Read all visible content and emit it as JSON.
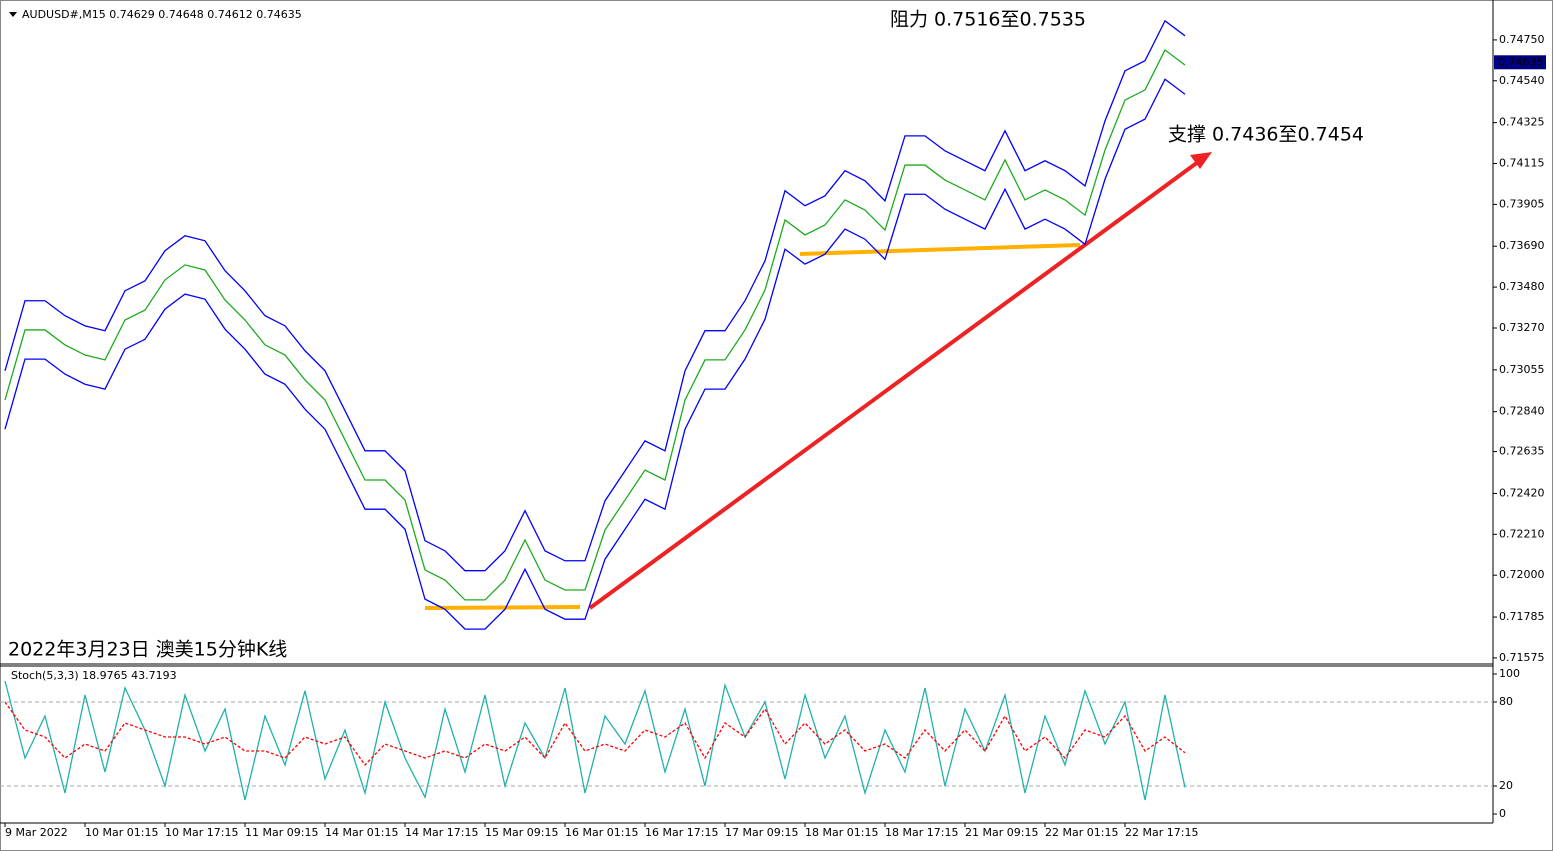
{
  "chart_data": [
    {
      "type": "line",
      "title": "AUDUSD#,M15  0.74629 0.74648 0.74612 0.74635",
      "annotations": [
        "阻力 0.7516至0.7535",
        "支撑 0.7436至0.7454",
        "2022年3月23日 澳美15分钟K线"
      ],
      "categories": [
        "9 Mar 2022",
        null,
        null,
        null,
        "10 Mar 01:15",
        null,
        null,
        null,
        "10 Mar 17:15",
        null,
        null,
        null,
        "11 Mar 09:15",
        null,
        null,
        null,
        "14 Mar 01:15",
        null,
        null,
        null,
        "14 Mar 17:15",
        null,
        null,
        null,
        "15 Mar 09:15",
        null,
        null,
        null,
        "16 Mar 01:15",
        null,
        null,
        null,
        "16 Mar 17:15",
        null,
        null,
        null,
        "17 Mar 09:15",
        null,
        null,
        null,
        "18 Mar 01:15",
        null,
        null,
        null,
        "18 Mar 17:15",
        null,
        null,
        null,
        "21 Mar 09:15",
        null,
        null,
        null,
        "22 Mar 01:15",
        null,
        null,
        null,
        "22 Mar 17:15",
        null,
        null,
        null
      ],
      "series": [
        {
          "color": "#0000ff",
          "values": [
            0.7305,
            0.7341,
            0.7341,
            0.73333,
            0.73281,
            0.73256,
            0.73461,
            0.73512,
            0.73667,
            0.73744,
            0.73718,
            0.73564,
            0.73461,
            0.73333,
            0.73281,
            0.73153,
            0.7305,
            0.72845,
            0.72639,
            0.72639,
            0.72536,
            0.72177,
            0.72125,
            0.72023,
            0.72023,
            0.72125,
            0.72331,
            0.72125,
            0.72074,
            0.72074,
            0.72382,
            0.72536,
            0.7269,
            0.72639,
            0.7305,
            0.73256,
            0.73256,
            0.7341,
            0.73615,
            0.73975,
            0.73898,
            0.73949,
            0.74078,
            0.74026,
            0.73923,
            0.74257,
            0.74257,
            0.7418,
            0.74129,
            0.74078,
            0.74283,
            0.74078,
            0.74129,
            0.74078,
            0.74,
            0.74334,
            0.74591,
            0.74643,
            0.74848,
            0.74771
          ]
        },
        {
          "color": "#1faa1f",
          "values": [
            0.729,
            0.7326,
            0.7326,
            0.73183,
            0.73131,
            0.73106,
            0.73311,
            0.73362,
            0.73517,
            0.73594,
            0.73568,
            0.73414,
            0.73311,
            0.73183,
            0.73131,
            0.73003,
            0.729,
            0.72695,
            0.72489,
            0.72489,
            0.72386,
            0.72027,
            0.71975,
            0.71873,
            0.71873,
            0.71975,
            0.72181,
            0.71975,
            0.71924,
            0.71924,
            0.72232,
            0.72386,
            0.7254,
            0.72489,
            0.729,
            0.73106,
            0.73106,
            0.7326,
            0.73465,
            0.73825,
            0.73748,
            0.73799,
            0.73928,
            0.73876,
            0.73773,
            0.74107,
            0.74107,
            0.7403,
            0.73979,
            0.73928,
            0.74133,
            0.73928,
            0.73979,
            0.73928,
            0.7385,
            0.74184,
            0.74441,
            0.74493,
            0.74698,
            0.74621
          ]
        },
        {
          "color": "#0000ff",
          "values": [
            0.7275,
            0.7311,
            0.7311,
            0.73033,
            0.72981,
            0.72956,
            0.73161,
            0.73212,
            0.73367,
            0.73444,
            0.73418,
            0.73264,
            0.73161,
            0.73033,
            0.72981,
            0.72853,
            0.7275,
            0.72545,
            0.72339,
            0.72339,
            0.72236,
            0.71877,
            0.71825,
            0.71723,
            0.71723,
            0.71825,
            0.72031,
            0.71825,
            0.71774,
            0.71774,
            0.72082,
            0.72236,
            0.7239,
            0.72339,
            0.7275,
            0.72956,
            0.72956,
            0.7311,
            0.73315,
            0.73675,
            0.73598,
            0.73649,
            0.73778,
            0.73726,
            0.73623,
            0.73957,
            0.73957,
            0.7388,
            0.73829,
            0.73778,
            0.73983,
            0.73778,
            0.73829,
            0.73778,
            0.737,
            0.74034,
            0.74291,
            0.74343,
            0.74548,
            0.74471
          ]
        }
      ],
      "current_price": {
        "value": 0.74635,
        "label": "0.74635"
      },
      "ylim": [
        0.71554,
        0.74955
      ],
      "yticks": [
        {
          "value": 0.7475,
          "label": "0.74750"
        },
        {
          "value": 0.7454,
          "label": "0.74540"
        },
        {
          "value": 0.74325,
          "label": "0.74325"
        },
        {
          "value": 0.74115,
          "label": "0.74115"
        },
        {
          "value": 0.73905,
          "label": "0.73905"
        },
        {
          "value": 0.7369,
          "label": "0.73690"
        },
        {
          "value": 0.7348,
          "label": "0.73480"
        },
        {
          "value": 0.7327,
          "label": "0.73270"
        },
        {
          "value": 0.73055,
          "label": "0.73055"
        },
        {
          "value": 0.7284,
          "label": "0.72840"
        },
        {
          "value": 0.72635,
          "label": "0.72635"
        },
        {
          "value": 0.7242,
          "label": "0.72420"
        },
        {
          "value": 0.7221,
          "label": "0.72210"
        },
        {
          "value": 0.72,
          "label": "0.72000"
        },
        {
          "value": 0.71785,
          "label": "0.71785"
        },
        {
          "value": 0.71575,
          "label": "0.71575"
        }
      ]
    },
    {
      "type": "line",
      "title": "Stoch(5,3,3) 18.9765 43.7193",
      "series": [
        {
          "color": "#20b2aa",
          "values": [
            95,
            40,
            70,
            15,
            85,
            30,
            90,
            60,
            20,
            85,
            45,
            75,
            10,
            70,
            35,
            88,
            25,
            60,
            15,
            80,
            40,
            12,
            75,
            30,
            85,
            20,
            65,
            40,
            90,
            15,
            70,
            50,
            88,
            30,
            75,
            20,
            92,
            55,
            80,
            25,
            85,
            40,
            70,
            15,
            60,
            30,
            90,
            20,
            75,
            45,
            85,
            15,
            70,
            35,
            88,
            50,
            80,
            10,
            85,
            18.9765
          ]
        },
        {
          "color": "#ff0000",
          "dashed": true,
          "values": [
            80,
            60,
            55,
            40,
            50,
            45,
            65,
            60,
            55,
            55,
            50,
            55,
            45,
            45,
            40,
            55,
            50,
            55,
            35,
            50,
            45,
            40,
            45,
            40,
            50,
            45,
            55,
            40,
            65,
            45,
            50,
            45,
            60,
            55,
            65,
            40,
            65,
            55,
            75,
            50,
            65,
            50,
            60,
            45,
            50,
            40,
            60,
            45,
            60,
            45,
            70,
            45,
            55,
            40,
            60,
            55,
            70,
            45,
            55,
            43.7193
          ]
        }
      ],
      "ylim": [
        0,
        100
      ],
      "yticks": [
        100,
        80,
        20,
        0
      ],
      "levels": [
        80,
        20
      ]
    }
  ]
}
